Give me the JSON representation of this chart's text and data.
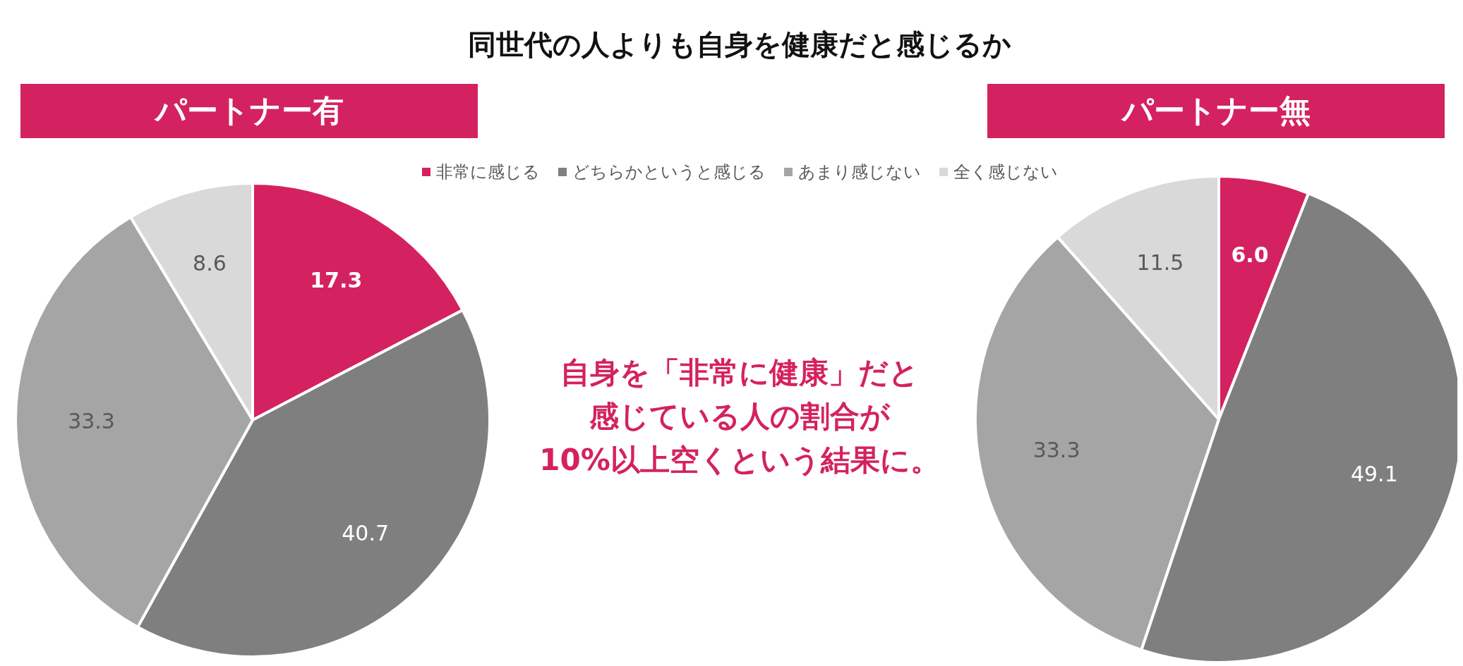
{
  "chart_data": [
    {
      "type": "other",
      "title": "同世代の人よりも自身を健康だと感じるか",
      "annotations": [
        "自身を「非常に健康」だと",
        "感じている人の割合が",
        "10%以上空くという結果に。"
      ]
    },
    {
      "type": "pie",
      "title": "パートナー有",
      "categories": [
        "非常に感じる",
        "どちらかというと感じる",
        "あまり感じない",
        "全く感じない"
      ],
      "values": [
        17.3,
        40.7,
        33.3,
        8.6
      ],
      "value_labels": [
        "17.3",
        "40.7",
        "33.3",
        "8.6"
      ],
      "colors": [
        "#d42260",
        "#7f7f7f",
        "#a5a5a5",
        "#d9d9d9"
      ],
      "legend": "top"
    },
    {
      "type": "pie",
      "title": "パートナー無",
      "categories": [
        null,
        null,
        null,
        null
      ],
      "values": [
        6.0,
        49.1,
        33.3,
        11.5
      ],
      "value_labels": [
        "6.0",
        "49.1",
        "33.3",
        "11.5"
      ],
      "colors": [
        "#d42260",
        "#7f7f7f",
        "#a5a5a5",
        "#d9d9d9"
      ]
    }
  ]
}
